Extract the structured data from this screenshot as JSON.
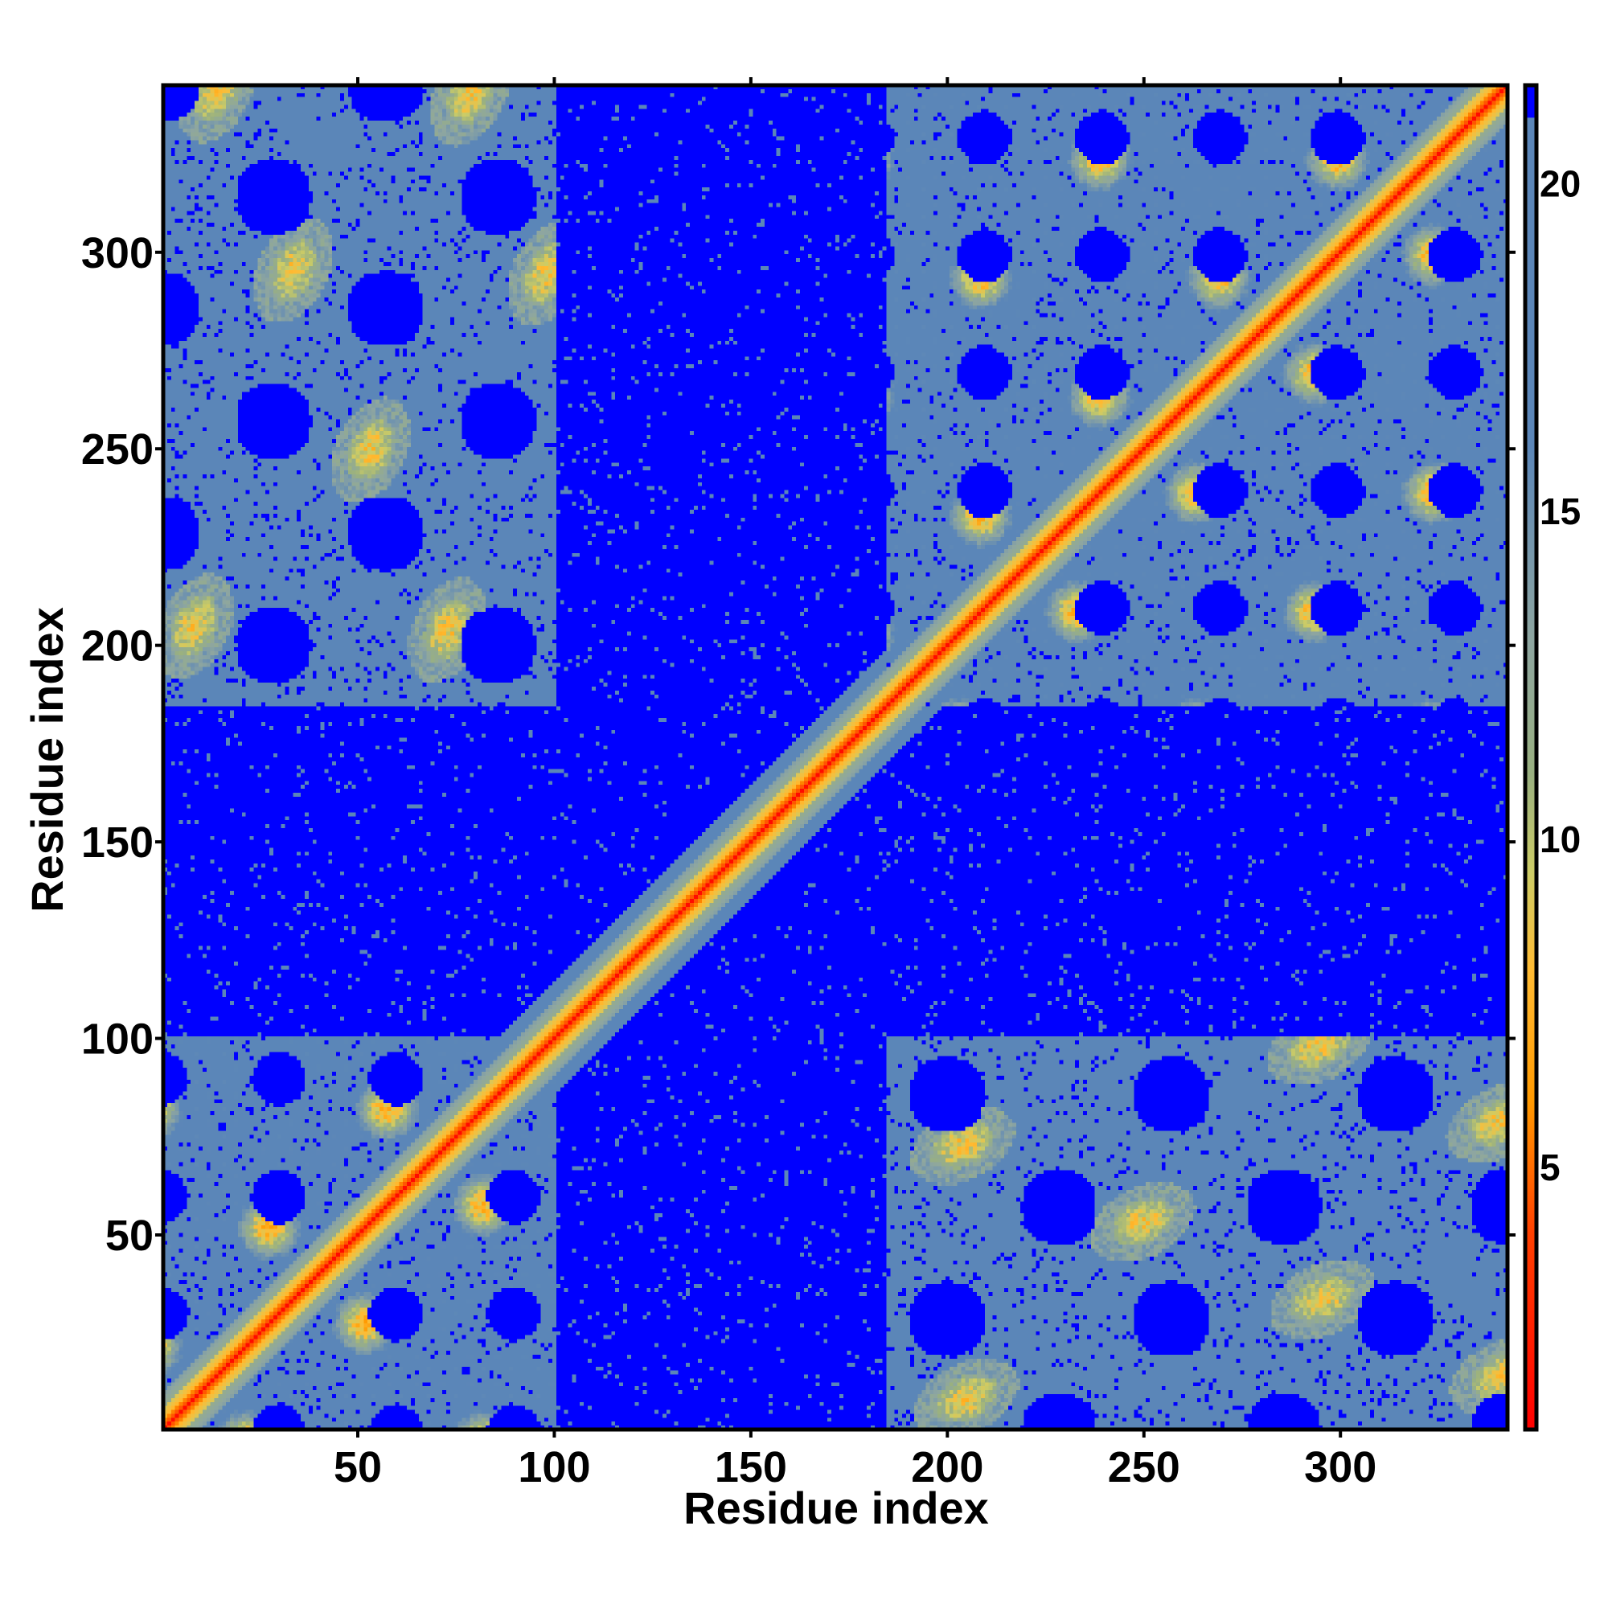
{
  "chart_data": {
    "type": "heatmap",
    "title": "",
    "xlabel": "Residue index",
    "ylabel": "Residue index",
    "xlim": [
      1,
      342
    ],
    "ylim": [
      1,
      342
    ],
    "x_ticks": [
      50,
      100,
      150,
      200,
      250,
      300
    ],
    "y_ticks": [
      50,
      100,
      150,
      200,
      250,
      300
    ],
    "colorbar": {
      "min": 1,
      "max": 21.5,
      "ticks": [
        5,
        10,
        15,
        20
      ],
      "stops": [
        {
          "value": 1,
          "color": "#ff0000"
        },
        {
          "value": 4,
          "color": "#ff4000"
        },
        {
          "value": 6,
          "color": "#ff9900"
        },
        {
          "value": 8,
          "color": "#ffbb33"
        },
        {
          "value": 9.5,
          "color": "#cccc66"
        },
        {
          "value": 11,
          "color": "#99b080"
        },
        {
          "value": 13,
          "color": "#8ea6a0"
        },
        {
          "value": 16,
          "color": "#5b86b8"
        },
        {
          "value": 21,
          "color": "#5b86b8"
        },
        {
          "value": 21.01,
          "color": "#0000ff"
        },
        {
          "value": 21.5,
          "color": "#0000ff"
        }
      ]
    },
    "description_of_values": "Pairwise residue distance map (symmetric). Diagonal ~3.8; near-diagonal band <10; domain contacts 10–20; no-contact regions ≥21.",
    "domains": [
      [
        1,
        100
      ],
      [
        185,
        342
      ]
    ],
    "linker": [
      100,
      185
    ],
    "grid": false,
    "legend": "colorbar right"
  }
}
